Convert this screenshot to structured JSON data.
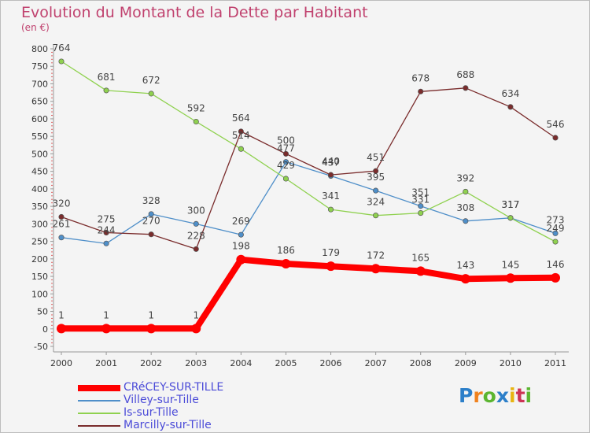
{
  "title": "Evolution du Montant de la Dette par Habitant",
  "unit": "(en €)",
  "logo": "Proxiti",
  "chart_data": {
    "type": "line",
    "title": "Evolution du Montant de la Dette par Habitant",
    "ylabel": "(en €)",
    "xlabel": "",
    "ylim": [
      -50,
      800
    ],
    "yticks": [
      -50,
      0,
      50,
      100,
      150,
      200,
      250,
      300,
      350,
      400,
      450,
      500,
      550,
      600,
      650,
      700,
      750,
      800
    ],
    "categories": [
      "2000",
      "2001",
      "2002",
      "2003",
      "2004",
      "2005",
      "2006",
      "2007",
      "2008",
      "2009",
      "2010",
      "2011"
    ],
    "grid": false,
    "legend_position": "bottom-left",
    "series": [
      {
        "name": "CRéCEY-SUR-TILLE",
        "color": "#ff0000",
        "values": [
          1,
          1,
          1,
          1,
          198,
          186,
          179,
          172,
          165,
          143,
          145,
          146
        ]
      },
      {
        "name": "Villey-sur-Tille",
        "color": "#4f8fc9",
        "values": [
          261,
          244,
          328,
          300,
          269,
          477,
          437,
          395,
          351,
          308,
          317,
          273
        ]
      },
      {
        "name": "Is-sur-Tille",
        "color": "#8fd14f",
        "values": [
          764,
          681,
          672,
          592,
          514,
          429,
          341,
          324,
          331,
          392,
          317,
          249
        ]
      },
      {
        "name": "Marcilly-sur-Tille",
        "color": "#7a2c2c",
        "values": [
          320,
          275,
          270,
          228,
          564,
          500,
          440,
          451,
          678,
          688,
          634,
          546
        ]
      }
    ]
  }
}
